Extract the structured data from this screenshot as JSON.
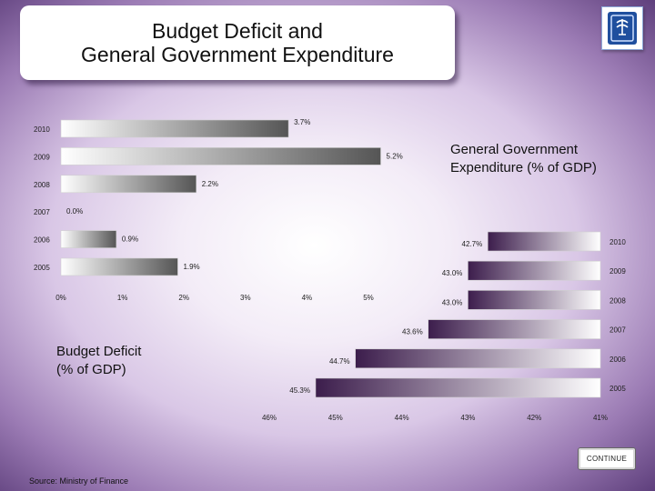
{
  "slide": {
    "title_line1": "Budget Deficit and",
    "title_line2": "General Government Expenditure",
    "source": "Source: Ministry of Finance",
    "continue_label": "CONTINUE",
    "emblem_icon": "state-emblem-icon"
  },
  "chart_data": [
    {
      "type": "bar",
      "orientation": "horizontal",
      "title": "Budget Deficit\n(% of GDP)",
      "title_lines": [
        "Budget Deficit",
        "(% of GDP)"
      ],
      "categories": [
        "2010",
        "2009",
        "2008",
        "2007",
        "2006",
        "2005"
      ],
      "values": [
        3.7,
        5.2,
        2.2,
        0.0,
        0.9,
        1.9
      ],
      "value_labels": [
        "3.7%",
        "5.2%",
        "2.2%",
        "0.0%",
        "0.9%",
        "1.9%"
      ],
      "x_ticks": [
        "0%",
        "1%",
        "2%",
        "3%",
        "4%",
        "5%"
      ],
      "xlim": [
        0,
        6
      ],
      "bar_color": "#555555"
    },
    {
      "type": "bar",
      "orientation": "horizontal",
      "direction": "reversed",
      "title": "General Government\nExpenditure (% of GDP)",
      "title_lines": [
        "General Government",
        "Expenditure (% of GDP)"
      ],
      "categories": [
        "2010",
        "2009",
        "2008",
        "2007",
        "2006",
        "2005"
      ],
      "values": [
        42.7,
        43.0,
        43.0,
        43.6,
        44.7,
        45.3
      ],
      "value_labels": [
        "42.7%",
        "43.0%",
        "43.0%",
        "43.6%",
        "44.7%",
        "45.3%"
      ],
      "x_ticks": [
        "46%",
        "45%",
        "44%",
        "43%",
        "42%",
        "41%"
      ],
      "xlim": [
        41,
        46
      ],
      "bar_color": "#3c1d4c"
    }
  ]
}
